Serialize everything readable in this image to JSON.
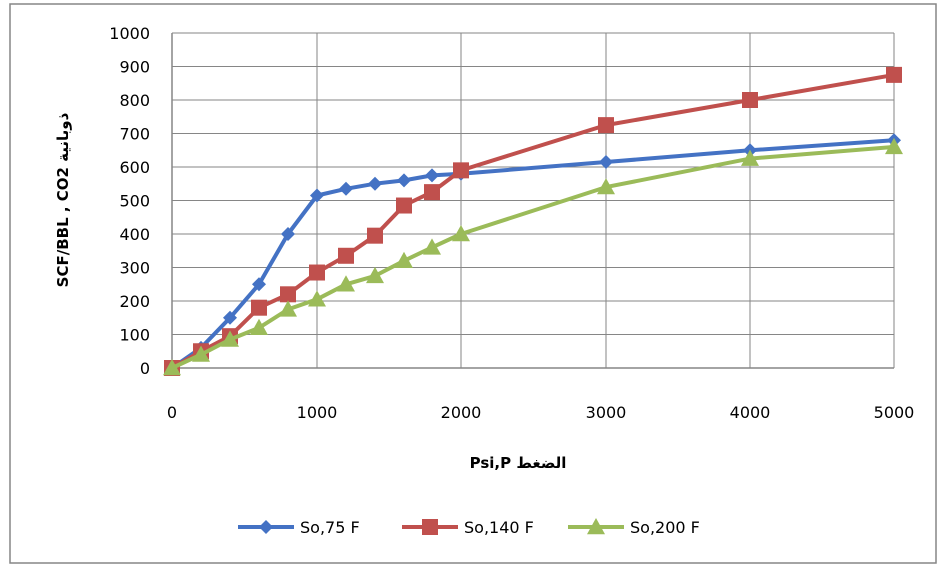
{
  "chart_data": {
    "type": "line",
    "title": "",
    "xlabel": "Psi,P الضغط",
    "ylabel": "SCF/BBL , CO2 ذوبانية",
    "x_ticks": [
      "0",
      "1000",
      "2000",
      "3000",
      "4000",
      "5000"
    ],
    "y_ticks": [
      "0",
      "100",
      "200",
      "300",
      "400",
      "500",
      "600",
      "700",
      "800",
      "900",
      "1000"
    ],
    "ylim": [
      0,
      1000
    ],
    "grid": true,
    "legend_position": "bottom",
    "series": [
      {
        "name": "So,75 F",
        "color": "#4472C4",
        "marker": "diamond",
        "x": [
          0,
          200,
          400,
          600,
          800,
          1000,
          1200,
          1400,
          1600,
          1800,
          2000,
          3000,
          4000,
          5000
        ],
        "y": [
          0,
          60,
          150,
          250,
          400,
          515,
          535,
          550,
          560,
          575,
          580,
          615,
          650,
          680
        ]
      },
      {
        "name": "So,140 F",
        "color": "#C0504D",
        "marker": "square",
        "x": [
          0,
          200,
          400,
          600,
          800,
          1000,
          1200,
          1400,
          1600,
          1800,
          2000,
          3000,
          4000,
          5000
        ],
        "y": [
          0,
          50,
          95,
          180,
          220,
          285,
          335,
          395,
          485,
          525,
          590,
          725,
          800,
          875
        ]
      },
      {
        "name": "So,200 F",
        "color": "#9BBB59",
        "marker": "triangle",
        "x": [
          0,
          200,
          400,
          600,
          800,
          1000,
          1200,
          1400,
          1600,
          1800,
          2000,
          3000,
          4000,
          5000
        ],
        "y": [
          0,
          40,
          85,
          120,
          175,
          205,
          250,
          275,
          320,
          360,
          400,
          540,
          625,
          660
        ]
      }
    ]
  }
}
